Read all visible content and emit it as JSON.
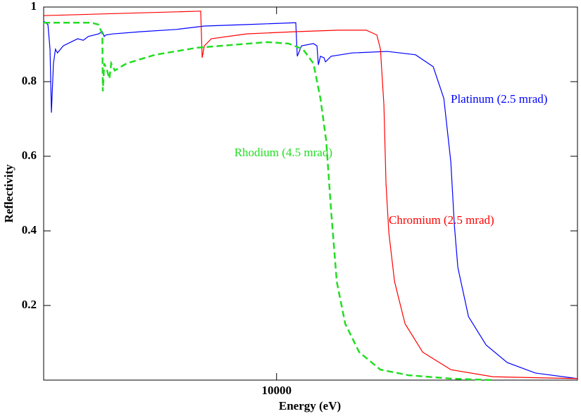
{
  "chart_data": {
    "type": "line",
    "x_label": "Energy (eV)",
    "y_label": "Reflectivity",
    "xscale": "log",
    "xlim": [
      2000,
      80000
    ],
    "xticks": [
      10000
    ],
    "ylim": [
      0,
      1
    ],
    "yticks": [
      0.2,
      0.4,
      0.6,
      0.8,
      1
    ],
    "series": [
      {
        "name": "Platinum (2.5 mrad)",
        "color": "#0000ff",
        "linestyle": "solid",
        "x": [
          2000,
          2060,
          2090,
          2110,
          2140,
          2170,
          2200,
          2290,
          2530,
          2630,
          2720,
          2920,
          3000,
          3040,
          3070,
          3220,
          3920,
          5000,
          6070,
          8130,
          11420,
          11540,
          11880,
          12900,
          13220,
          13350,
          13540,
          13880,
          14020,
          14580,
          16870,
          21520,
          26120,
          29520,
          31770,
          33340,
          34170,
          35000,
          37680,
          42560,
          49240,
          59800,
          80000
        ],
        "values": [
          0.962,
          0.953,
          0.887,
          0.717,
          0.849,
          0.887,
          0.877,
          0.896,
          0.915,
          0.911,
          0.921,
          0.928,
          0.934,
          0.921,
          0.925,
          0.928,
          0.934,
          0.94,
          0.949,
          0.953,
          0.958,
          0.868,
          0.896,
          0.902,
          0.896,
          0.845,
          0.868,
          0.864,
          0.853,
          0.868,
          0.877,
          0.881,
          0.872,
          0.84,
          0.755,
          0.585,
          0.415,
          0.302,
          0.17,
          0.094,
          0.047,
          0.019,
          0.004
        ]
      },
      {
        "name": "Chromium (2.5 mrad)",
        "color": "#ff0000",
        "linestyle": "solid",
        "x": [
          2000,
          5920,
          5980,
          6070,
          6370,
          8130,
          11420,
          15300,
          18580,
          20000,
          20500,
          21000,
          21300,
          21720,
          22600,
          24300,
          27440,
          33340,
          44600,
          80000
        ],
        "values": [
          0.977,
          0.989,
          0.864,
          0.896,
          0.915,
          0.928,
          0.934,
          0.938,
          0.938,
          0.925,
          0.887,
          0.736,
          0.528,
          0.396,
          0.264,
          0.151,
          0.075,
          0.028,
          0.009,
          0.004
        ]
      },
      {
        "name": "Rhodium (4.5 mrad)",
        "color": "#22dd22",
        "linestyle": "dashed",
        "x": [
          2000,
          2080,
          2780,
          2920,
          3000,
          3010,
          3040,
          3100,
          3150,
          3190,
          3270,
          3550,
          4320,
          5780,
          9400,
          10880,
          12000,
          12900,
          13540,
          14090,
          14580,
          15160,
          16070,
          17700,
          20500,
          24900,
          33340,
          44600
        ],
        "values": [
          0.958,
          0.958,
          0.958,
          0.953,
          0.928,
          0.774,
          0.849,
          0.83,
          0.808,
          0.849,
          0.83,
          0.849,
          0.872,
          0.891,
          0.906,
          0.902,
          0.887,
          0.849,
          0.755,
          0.642,
          0.453,
          0.264,
          0.151,
          0.075,
          0.028,
          0.013,
          0.004,
          0
        ]
      }
    ]
  }
}
